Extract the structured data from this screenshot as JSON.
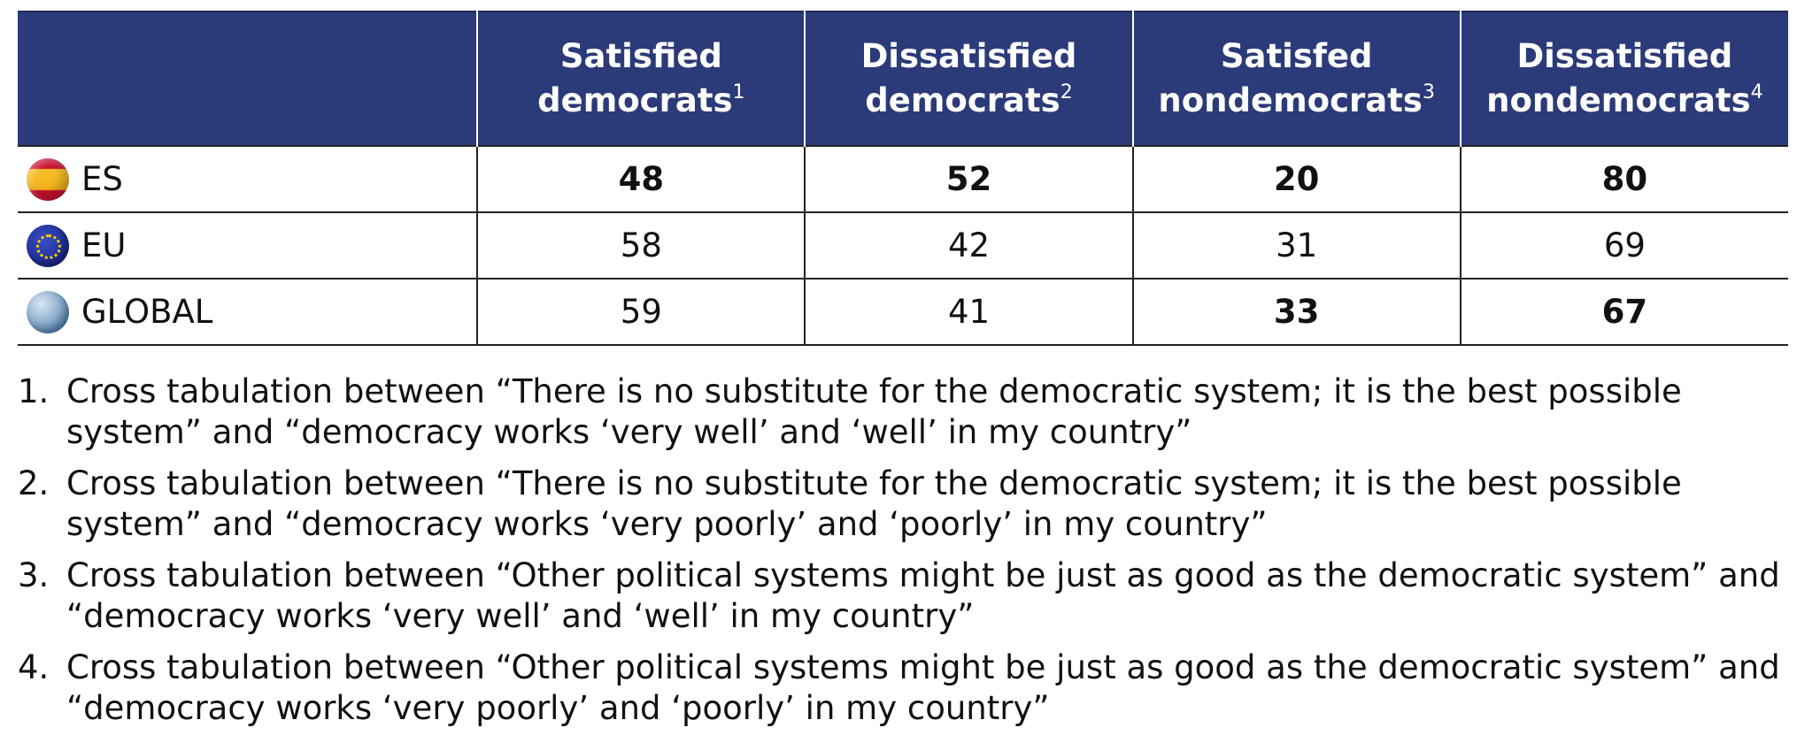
{
  "chart_data": {
    "type": "table",
    "columns": [
      {
        "label": "Satisfied democrats",
        "lines": [
          "Satisfied",
          "democrats"
        ],
        "footnote": "1"
      },
      {
        "label": "Dissatisfied democrats",
        "lines": [
          "Dissatisfied",
          "democrats"
        ],
        "footnote": "2"
      },
      {
        "label": "Satisfed nondemocrats",
        "lines": [
          "Satisfed",
          "nondemocrats"
        ],
        "footnote": "3"
      },
      {
        "label": "Dissatisfied nondemocrats",
        "lines": [
          "Dissatisfied",
          "nondemocrats"
        ],
        "footnote": "4"
      }
    ],
    "rows": [
      {
        "label": "ES",
        "icon": "spain-flag-icon",
        "values": [
          48,
          52,
          20,
          80
        ],
        "bold": [
          true,
          true,
          true,
          true
        ]
      },
      {
        "label": "EU",
        "icon": "eu-flag-icon",
        "values": [
          58,
          42,
          31,
          69
        ],
        "bold": [
          false,
          false,
          false,
          false
        ]
      },
      {
        "label": "GLOBAL",
        "icon": "globe-icon",
        "values": [
          59,
          41,
          33,
          67
        ],
        "bold": [
          false,
          false,
          true,
          true
        ]
      }
    ]
  },
  "notes": [
    {
      "num": "1.",
      "text": "Cross tabulation between “There is no substitute for the democratic system; it is the best possible system” and “democracy works ‘very well’ and ‘well’ in my country”"
    },
    {
      "num": "2.",
      "text": "Cross tabulation between “There is no substitute for the democratic system; it is the best possible system” and “democracy works ‘very poorly’ and ‘poorly’ in my country”"
    },
    {
      "num": "3.",
      "text": "Cross tabulation between “Other political systems might be just as good as the democratic system” and “democracy works ‘very well’ and ‘well’ in my country”"
    },
    {
      "num": "4.",
      "text": "Cross tabulation between “Other political systems might be just as good as the democratic system” and “democracy works ‘very poorly’ and ‘poorly’ in my country”"
    }
  ],
  "colors": {
    "header_bg": "#2b3a78",
    "header_text": "#ffffff",
    "rule": "#222222"
  }
}
